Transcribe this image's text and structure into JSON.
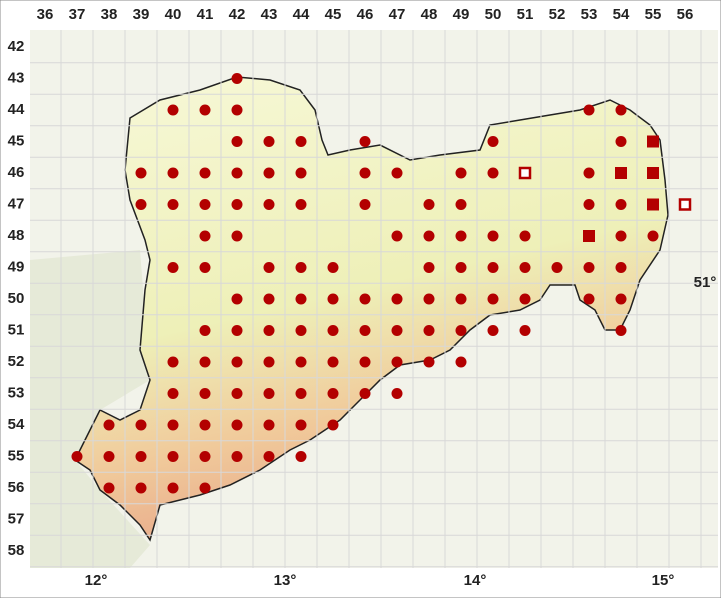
{
  "columns": [
    36,
    37,
    38,
    39,
    40,
    41,
    42,
    43,
    44,
    45,
    46,
    47,
    48,
    49,
    50,
    51,
    52,
    53,
    54,
    55,
    56
  ],
  "rows": [
    42,
    43,
    44,
    45,
    46,
    47,
    48,
    49,
    50,
    51,
    52,
    53,
    54,
    55,
    56,
    57,
    58
  ],
  "longitudes": [
    "12°",
    "13°",
    "14°",
    "15°"
  ],
  "latitudes": [
    "51°"
  ],
  "records": [
    {
      "row": 43,
      "dots": [
        42
      ],
      "squares": [],
      "open": []
    },
    {
      "row": 44,
      "dots": [
        40,
        41,
        42,
        53,
        54
      ],
      "squares": [],
      "open": []
    },
    {
      "row": 45,
      "dots": [
        42,
        43,
        44,
        46,
        50,
        54
      ],
      "squares": [
        55
      ],
      "open": []
    },
    {
      "row": 46,
      "dots": [
        39,
        40,
        41,
        42,
        43,
        44,
        46,
        47,
        49,
        50,
        53
      ],
      "squares": [
        54,
        55
      ],
      "open": [
        51
      ]
    },
    {
      "row": 47,
      "dots": [
        39,
        40,
        41,
        42,
        43,
        44,
        46,
        48,
        49,
        53,
        54
      ],
      "squares": [
        55
      ],
      "open": [
        56
      ]
    },
    {
      "row": 48,
      "dots": [
        41,
        42,
        47,
        48,
        49,
        50,
        51,
        54,
        55
      ],
      "squares": [
        53
      ],
      "open": []
    },
    {
      "row": 49,
      "dots": [
        40,
        41,
        43,
        44,
        45,
        48,
        49,
        50,
        51,
        52,
        53,
        54
      ],
      "squares": [],
      "open": []
    },
    {
      "row": 50,
      "dots": [
        42,
        43,
        44,
        45,
        46,
        47,
        48,
        49,
        50,
        51,
        53,
        54
      ],
      "squares": [],
      "open": []
    },
    {
      "row": 51,
      "dots": [
        41,
        42,
        43,
        44,
        45,
        46,
        47,
        48,
        49,
        50,
        51,
        54
      ],
      "squares": [],
      "open": []
    },
    {
      "row": 52,
      "dots": [
        40,
        41,
        42,
        43,
        44,
        45,
        46,
        47,
        48,
        49
      ],
      "squares": [],
      "open": []
    },
    {
      "row": 53,
      "dots": [
        40,
        41,
        42,
        43,
        44,
        45,
        46,
        47
      ],
      "squares": [],
      "open": []
    },
    {
      "row": 54,
      "dots": [
        38,
        39,
        40,
        41,
        42,
        43,
        44,
        45
      ],
      "squares": [],
      "open": []
    },
    {
      "row": 55,
      "dots": [
        37,
        38,
        39,
        40,
        41,
        42,
        43,
        44
      ],
      "squares": [],
      "open": []
    },
    {
      "row": 56,
      "dots": [
        38,
        39,
        40,
        41
      ],
      "squares": [],
      "open": []
    }
  ],
  "marker_color": "#b30000"
}
